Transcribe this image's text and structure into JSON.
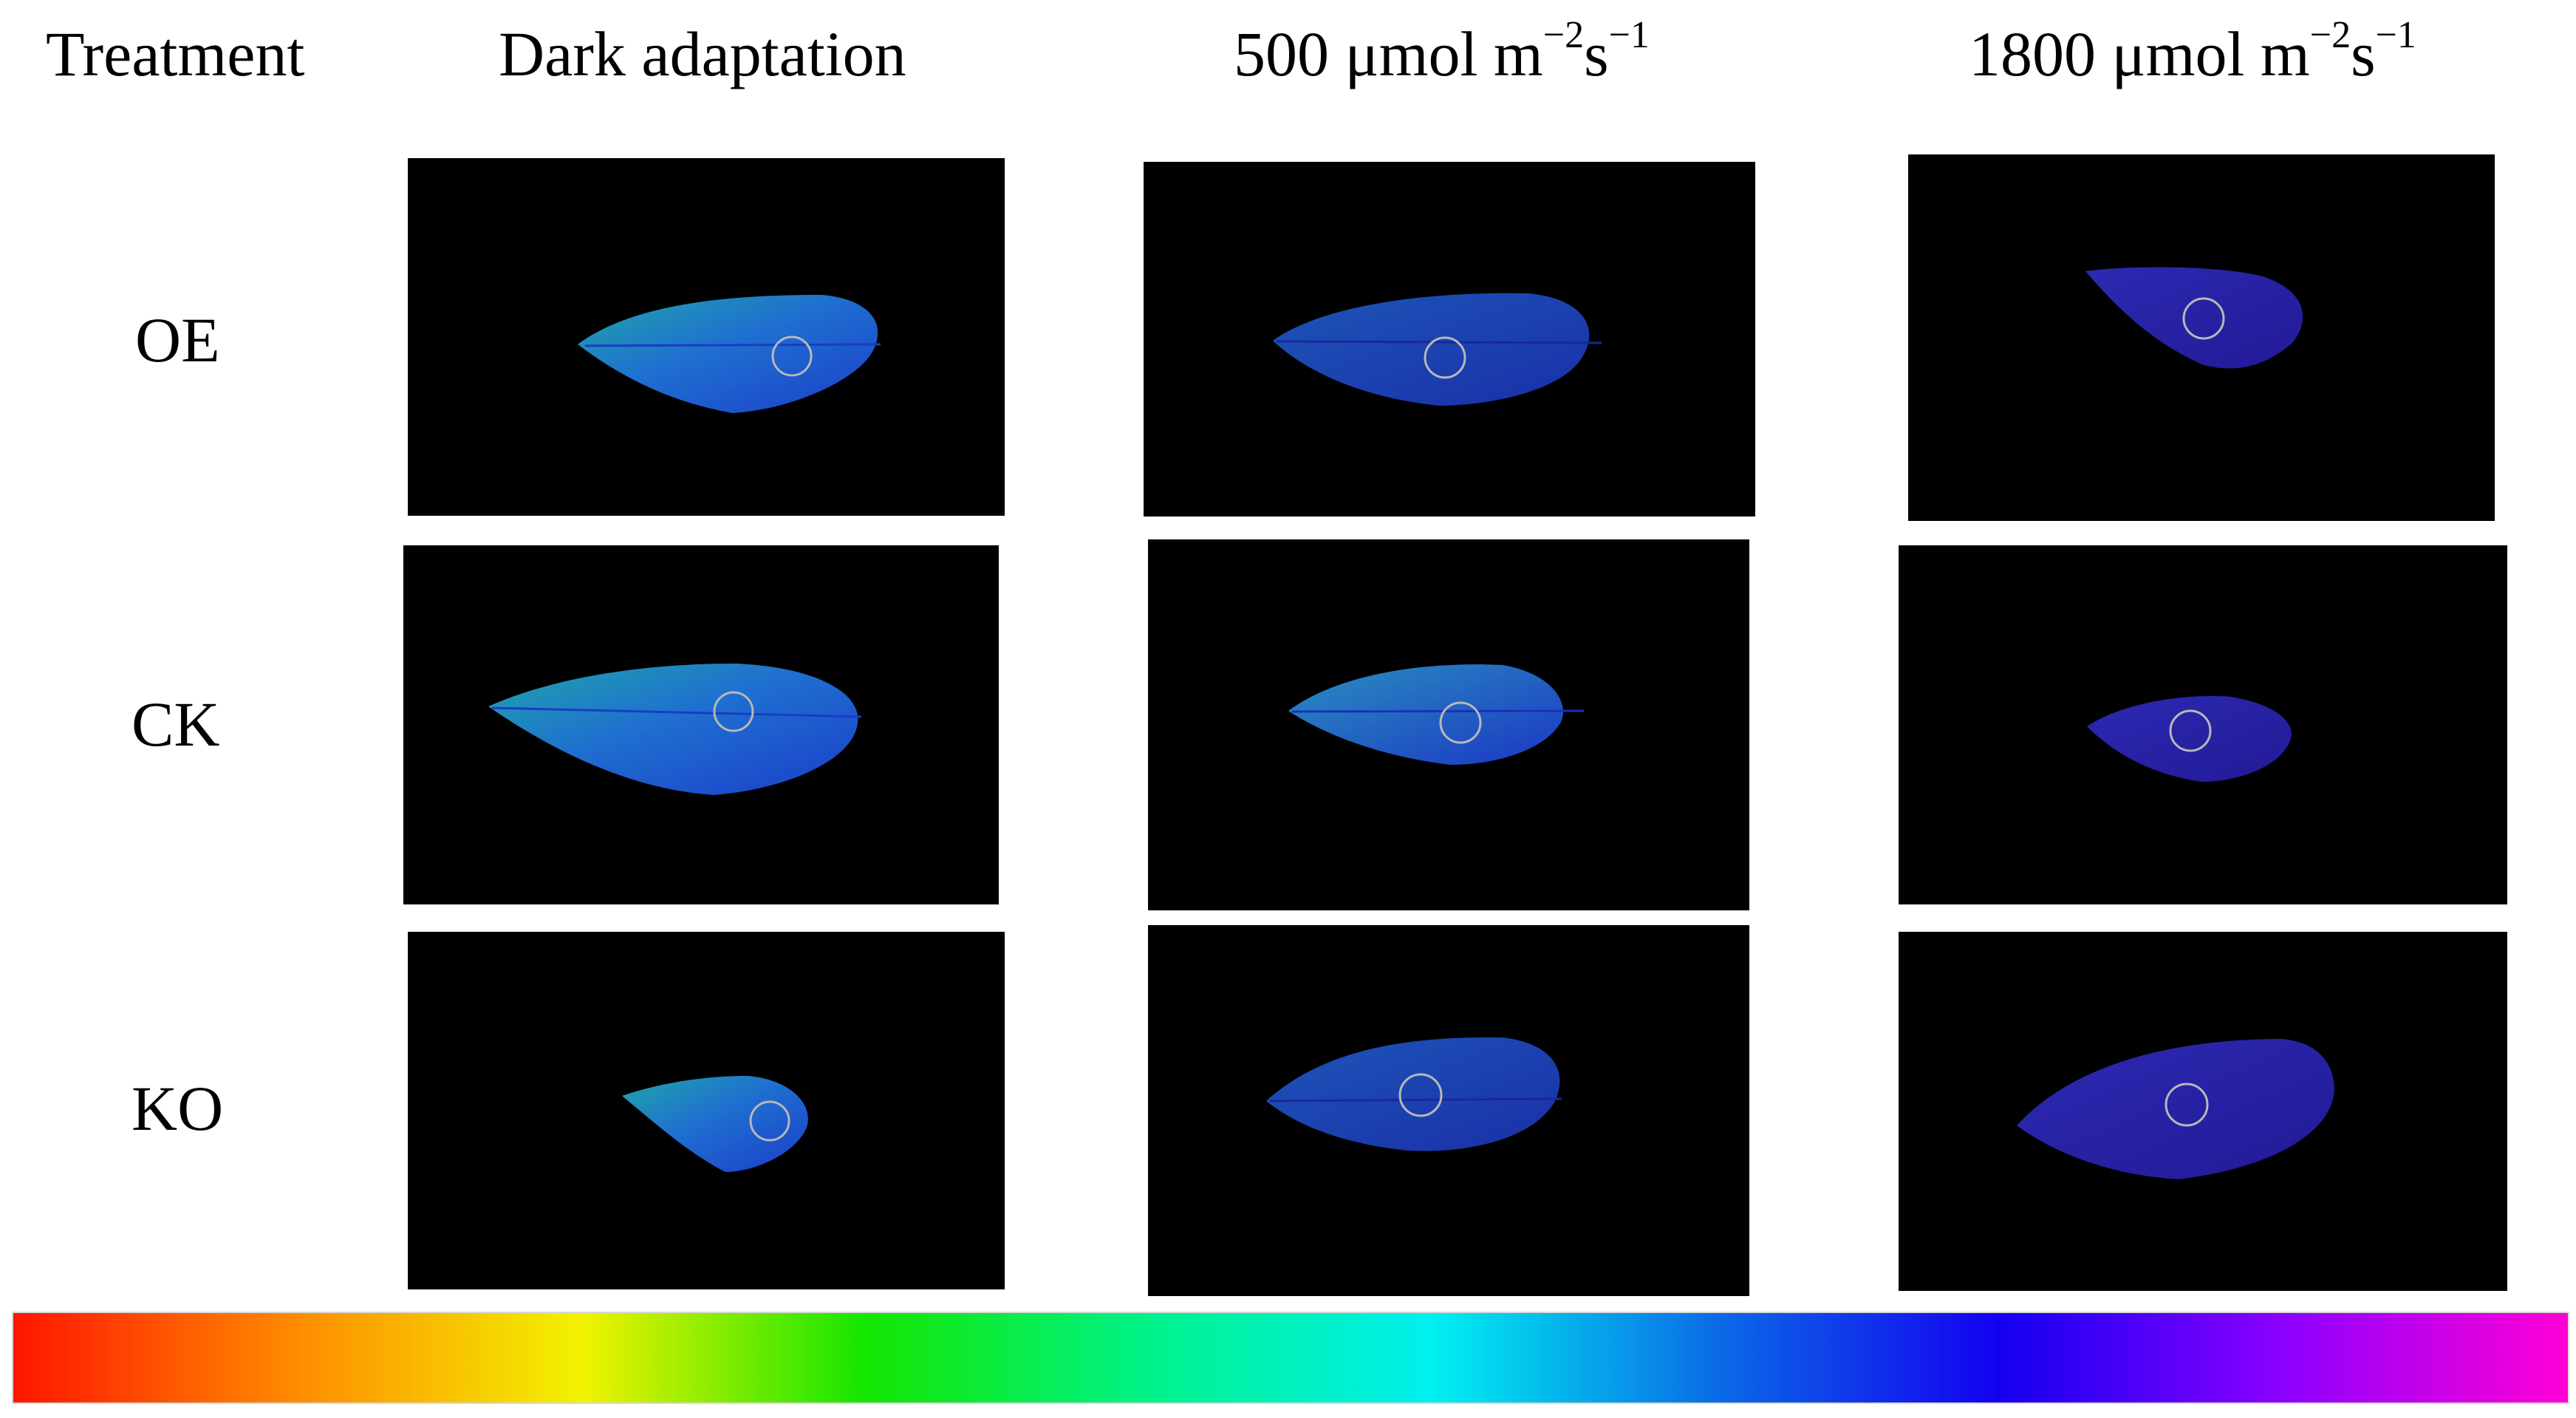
{
  "header": {
    "treatment": "Treatment",
    "dark": "Dark adaptation",
    "c500_main": "500 μmol m",
    "c500_sup1": "−2",
    "c500_mid": "s",
    "c500_sup2": "−1",
    "c1800_main": "1800 μmol m",
    "c1800_sup1": "−2",
    "c1800_mid": "s",
    "c1800_sup2": "−1"
  },
  "rows": {
    "oe": "OE",
    "ck": "CK",
    "ko": "KO"
  },
  "colors": {
    "panel_background": "#000000",
    "dark_leaf_light": "#1fa7a9",
    "dark_leaf_deep": "#1b3ec9",
    "light500_leaf": "#1a33b0",
    "light1800_leaf": "#2a1fa0",
    "aoi_circle": "#b8b8b8"
  },
  "colorbar": {
    "stops": [
      "#ff1500",
      "#ff8c00",
      "#f2f200",
      "#14e600",
      "#00f28a",
      "#00f0f0",
      "#0b6be6",
      "#1400f0",
      "#8c00ff",
      "#ff00d4"
    ]
  }
}
